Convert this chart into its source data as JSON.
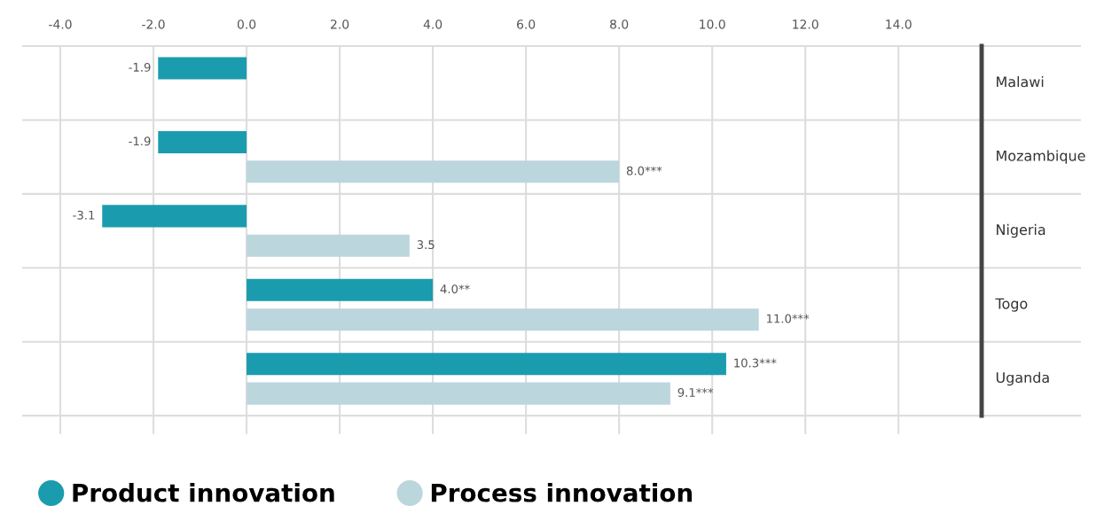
{
  "chart_data": {
    "type": "bar",
    "orientation": "horizontal",
    "categories": [
      "Malawi",
      "Mozambique",
      "Nigeria",
      "Togo",
      "Uganda"
    ],
    "series": [
      {
        "name": "Product innovation",
        "color": "#1a9cae",
        "values": [
          -1.9,
          -1.9,
          -3.1,
          4.0,
          10.3
        ],
        "value_labels": [
          "-1.9",
          "-1.9",
          "-3.1",
          "4.0**",
          "10.3***"
        ]
      },
      {
        "name": "Process innovation",
        "color": "#bcd6de",
        "values": [
          null,
          8.0,
          3.5,
          11.0,
          9.1
        ],
        "value_labels": [
          null,
          "8.0***",
          "3.5",
          "11.0***",
          "9.1***"
        ]
      }
    ],
    "xlim": [
      -4.8,
      17.9
    ],
    "xticks": [
      {
        "value": -4,
        "label": "-4.0"
      },
      {
        "value": -2,
        "label": "-2.0"
      },
      {
        "value": 0,
        "label": "0.0"
      },
      {
        "value": 2,
        "label": "2.0"
      },
      {
        "value": 4,
        "label": "4.0"
      },
      {
        "value": 6,
        "label": "6.0"
      },
      {
        "value": 8,
        "label": "8.0"
      },
      {
        "value": 10,
        "label": "10.0"
      },
      {
        "value": 12,
        "label": "12.0"
      },
      {
        "value": 14,
        "label": "14.0"
      }
    ],
    "grid": "x",
    "legend": "bottom left"
  }
}
